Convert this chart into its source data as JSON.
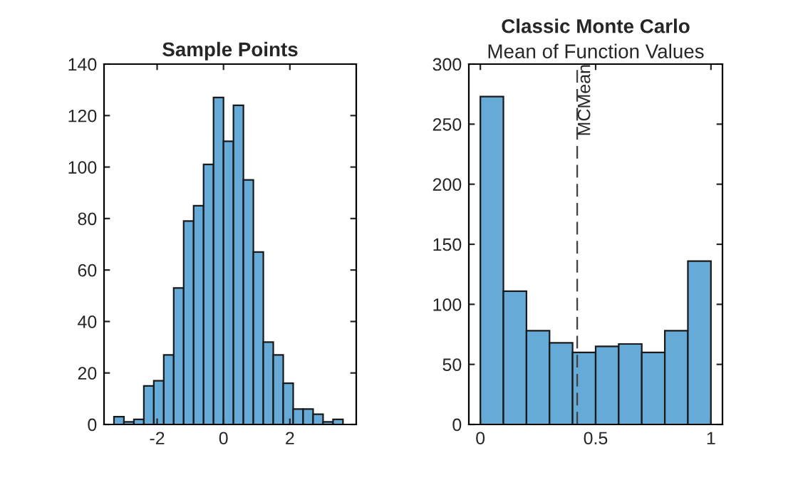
{
  "chart_data": [
    {
      "type": "histogram",
      "title": "Sample Points",
      "bins": [
        -3.3,
        -3.0,
        -2.7,
        -2.4,
        -2.1,
        -1.8,
        -1.5,
        -1.2,
        -0.9,
        -0.6,
        -0.3,
        0.0,
        0.3,
        0.6,
        0.9,
        1.2,
        1.5,
        1.8,
        2.1,
        2.4,
        2.7,
        3.0,
        3.3,
        3.6
      ],
      "values": [
        3,
        1,
        2,
        15,
        17,
        27,
        53,
        79,
        85,
        101,
        127,
        110,
        124,
        95,
        67,
        32,
        27,
        16,
        6,
        6,
        4,
        1,
        2
      ],
      "color": "#66aad7",
      "xlim": [
        -3.6,
        4.0
      ],
      "xticks": [
        -2,
        0,
        2
      ],
      "ylim": [
        0,
        140
      ],
      "yticks": [
        0,
        20,
        40,
        60,
        80,
        100,
        120,
        140
      ],
      "grid": false
    },
    {
      "type": "histogram",
      "title": "Classic Monte Carlo",
      "subtitle": "Mean of Function Values",
      "bins": [
        0,
        0.1,
        0.2,
        0.3,
        0.4,
        0.5,
        0.6,
        0.7,
        0.8,
        0.9,
        1.0
      ],
      "values": [
        273,
        111,
        78,
        68,
        60,
        65,
        67,
        60,
        78,
        136
      ],
      "color": "#66aad7",
      "xlim": [
        -0.05,
        1.05
      ],
      "xticks": [
        0,
        0.5,
        1
      ],
      "ylim": [
        0,
        300
      ],
      "yticks": [
        0,
        50,
        100,
        150,
        200,
        250,
        300
      ],
      "grid": false,
      "ref_lines": [
        {
          "axis": "x",
          "value": 0.42,
          "label": "MCMean",
          "line_style": "dashed",
          "color": "#404040"
        }
      ]
    }
  ]
}
